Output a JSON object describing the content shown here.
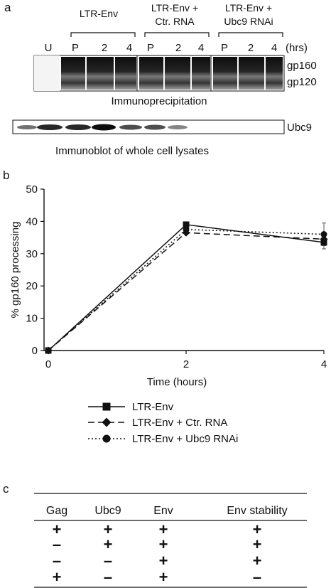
{
  "panel_a": {
    "label": "a",
    "groups": [
      "LTR-Env",
      "LTR-Env +",
      "Ctr. RNA",
      "LTR-Env +",
      "Ubc9 RNAi"
    ],
    "lanes": [
      "U",
      "P",
      "2",
      "4",
      "P",
      "2",
      "4",
      "P",
      "2",
      "4"
    ],
    "unit": "(hrs)",
    "bands": [
      "gp160",
      "gp120"
    ],
    "ip_caption": "Immunoprecipitation",
    "blot_label": "Ubc9",
    "blot_caption": "Immunoblot of whole cell lysates"
  },
  "panel_b": {
    "label": "b"
  },
  "chart_data": {
    "type": "line",
    "xlabel": "Time (hours)",
    "ylabel": "% gp160 processing",
    "x": [
      0,
      2,
      4
    ],
    "xticks": [
      "0",
      "2",
      "4"
    ],
    "yticks": [
      "0",
      "10",
      "20",
      "30",
      "40",
      "50"
    ],
    "xlim": [
      0,
      4
    ],
    "ylim": [
      0,
      50
    ],
    "grid": false,
    "legend_position": "bottom",
    "series": [
      {
        "name": "LTR-Env",
        "values": [
          0,
          39,
          33.5
        ],
        "marker": "square",
        "dash": "solid"
      },
      {
        "name": "LTR-Env + Ctr. RNA",
        "values": [
          0,
          36.5,
          34.5
        ],
        "marker": "diamond",
        "dash": "dashed"
      },
      {
        "name": "LTR-Env + Ubc9 RNAi",
        "values": [
          0,
          37.5,
          36
        ],
        "marker": "circle",
        "dash": "dotted"
      }
    ]
  },
  "panel_c": {
    "label": "c",
    "headers": [
      "Gag",
      "Ubc9",
      "Env",
      "Env stability"
    ],
    "rows": [
      [
        "+",
        "+",
        "+",
        "+"
      ],
      [
        "–",
        "+",
        "+",
        "+"
      ],
      [
        "–",
        "–",
        "+",
        "+"
      ],
      [
        "+",
        "–",
        "+",
        "–"
      ]
    ]
  }
}
